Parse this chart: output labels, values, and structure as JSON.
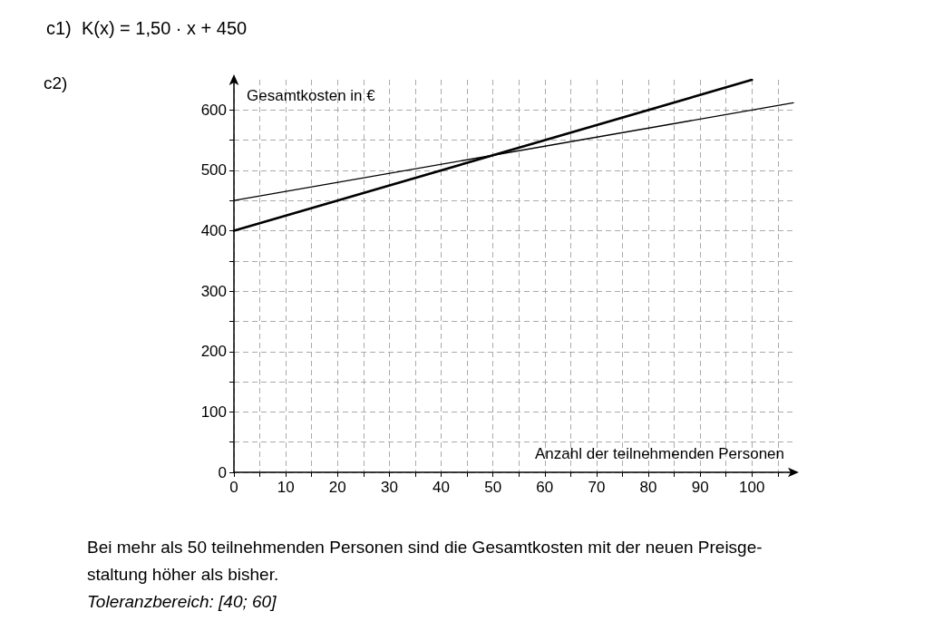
{
  "chart_data": {
    "type": "line",
    "title": "c1)  K(x) = 1,50 · x + 450",
    "xlabel": "Anzahl der teilnehmenden Personen",
    "ylabel": "Gesamtkosten in €",
    "annotations": [
      "c2)",
      "Bei mehr als 50 teilnehmenden Personen sind die Gesamtkosten mit der neuen Preisge-",
      "staltung höher als bisher.",
      "Toleranzbereich: [40; 60]"
    ],
    "series": [
      {
        "color": "#000000",
        "x": [
          0,
          100
        ],
        "values": [
          400,
          650
        ]
      },
      {
        "color": "#000000",
        "x": [
          0,
          108
        ],
        "values": [
          450,
          612
        ]
      }
    ],
    "xlim": [
      0,
      108
    ],
    "ylim": [
      0,
      650
    ],
    "xticks": [
      0,
      {
        "value": 5,
        "label": null
      },
      10,
      {
        "value": 15,
        "label": null
      },
      20,
      {
        "value": 25,
        "label": null
      },
      30,
      {
        "value": 35,
        "label": null
      },
      40,
      {
        "value": 45,
        "label": null
      },
      50,
      {
        "value": 55,
        "label": null
      },
      60,
      {
        "value": 65,
        "label": null
      },
      70,
      {
        "value": 75,
        "label": null
      },
      80,
      {
        "value": 85,
        "label": null
      },
      90,
      {
        "value": 95,
        "label": null
      },
      100,
      {
        "value": 105,
        "label": null
      }
    ],
    "yticks": [
      0,
      {
        "value": 50,
        "label": null
      },
      100,
      {
        "value": 150,
        "label": null
      },
      200,
      {
        "value": 250,
        "label": null
      },
      300,
      {
        "value": 350,
        "label": null
      },
      400,
      {
        "value": 450,
        "label": null
      },
      500,
      {
        "value": 550,
        "label": null
      },
      600
    ],
    "grid": true,
    "marker": "none",
    "line_style": "solid"
  }
}
